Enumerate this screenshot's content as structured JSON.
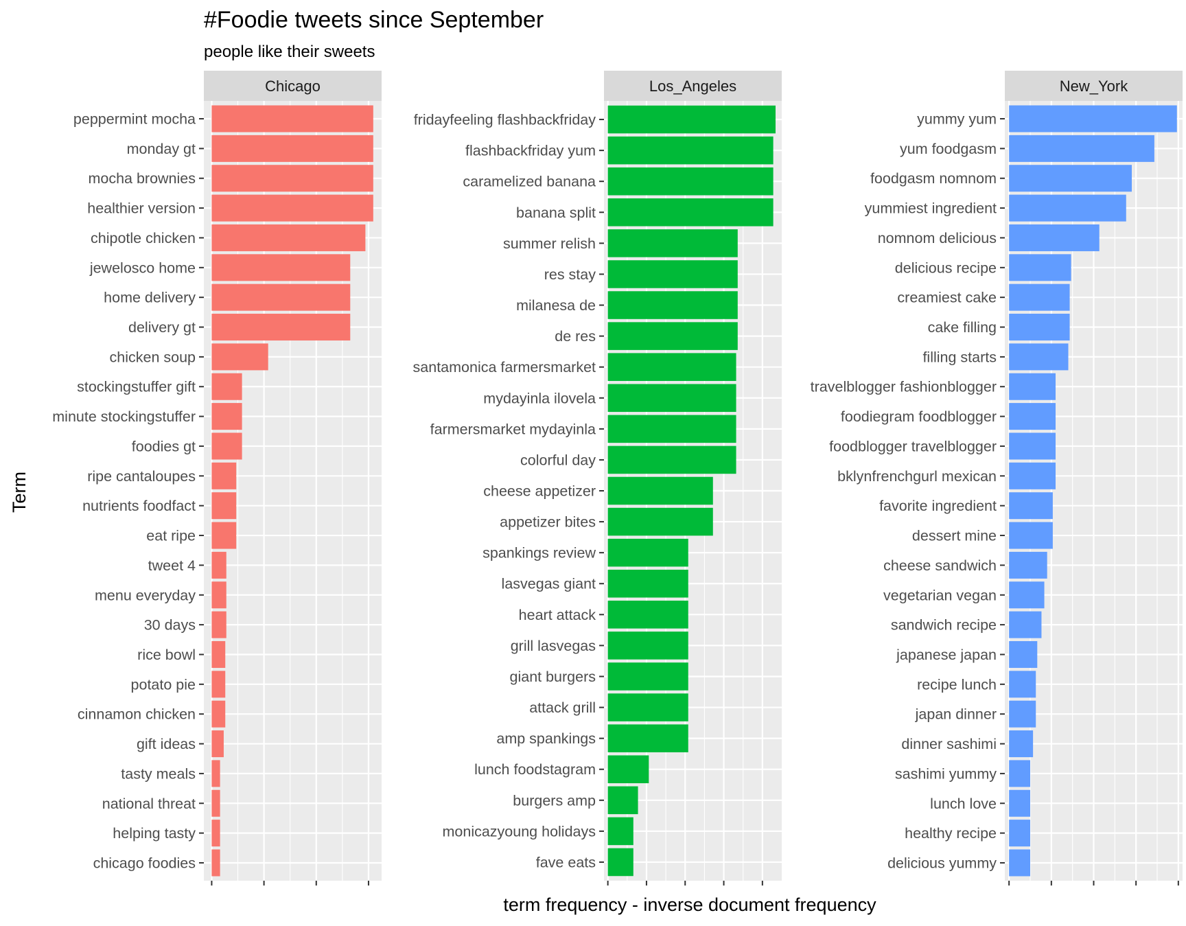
{
  "chart_data": {
    "type": "bar",
    "orientation": "horizontal",
    "faceted": true,
    "title": "#Foodie tweets since September",
    "subtitle": "people like their sweets",
    "xlabel": "term frequency - inverse document frequency",
    "ylabel": "Term",
    "grid": true,
    "legend": "none",
    "x_tick_labels_visible": false,
    "facets": [
      {
        "name": "Chicago",
        "color": "#F8766D",
        "xlim": [
          -0.0015,
          0.0325
        ],
        "x_ticks": [
          0,
          0.01,
          0.02,
          0.03
        ],
        "categories": [
          "peppermint mocha",
          "monday gt",
          "mocha brownies",
          "healthier version",
          "chipotle chicken",
          "jewelosco home",
          "home delivery",
          "delivery gt",
          "chicken soup",
          "stockingstuffer gift",
          "minute stockingstuffer",
          "foodies gt",
          "ripe cantaloupes",
          "nutrients foodfact",
          "eat ripe",
          "tweet 4",
          "menu everyday",
          "30 days",
          "rice bowl",
          "potato pie",
          "cinnamon chicken",
          "gift ideas",
          "tasty meals",
          "national threat",
          "helping tasty",
          "chicago foodies"
        ],
        "values": [
          0.0309,
          0.0309,
          0.0309,
          0.0309,
          0.0294,
          0.0265,
          0.0265,
          0.0265,
          0.0108,
          0.0058,
          0.0058,
          0.0058,
          0.0047,
          0.0047,
          0.0047,
          0.0028,
          0.0028,
          0.0028,
          0.0026,
          0.0026,
          0.0026,
          0.0023,
          0.0016,
          0.0016,
          0.0016,
          0.0016
        ]
      },
      {
        "name": "Los_Angeles",
        "color": "#00BA38",
        "xlim": [
          -0.0005,
          0.0225
        ],
        "x_ticks": [
          0,
          0.005,
          0.01,
          0.015,
          0.02
        ],
        "categories": [
          "fridayfeeling flashbackfriday",
          "flashbackfriday yum",
          "caramelized banana",
          "banana split",
          "summer relish",
          "res stay",
          "milanesa de",
          "de res",
          "santamonica farmersmarket",
          "mydayinla ilovela",
          "farmersmarket mydayinla",
          "colorful day",
          "cheese appetizer",
          "appetizer bites",
          "spankings review",
          "lasvegas giant",
          "heart attack",
          "grill lasvegas",
          "giant burgers",
          "attack grill",
          "amp spankings",
          "lunch foodstagram",
          "burgers amp",
          "monicazyoung holidays",
          "fave eats"
        ],
        "values": [
          0.0217,
          0.0214,
          0.0214,
          0.0214,
          0.0168,
          0.0168,
          0.0168,
          0.0168,
          0.0166,
          0.0166,
          0.0166,
          0.0166,
          0.0136,
          0.0136,
          0.0104,
          0.0104,
          0.0104,
          0.0104,
          0.0104,
          0.0104,
          0.0104,
          0.0053,
          0.0039,
          0.0033,
          0.0033
        ]
      },
      {
        "name": "New_York",
        "color": "#619CFF",
        "xlim": [
          -0.0003,
          0.0123
        ],
        "x_ticks": [
          0,
          0.003,
          0.006,
          0.009,
          0.012
        ],
        "categories": [
          "yummy yum",
          "yum foodgasm",
          "foodgasm nomnom",
          "yummiest ingredient",
          "nomnom delicious",
          "delicious recipe",
          "creamiest cake",
          "cake filling",
          "filling starts",
          "travelblogger fashionblogger",
          "foodiegram foodblogger",
          "foodblogger travelblogger",
          "bklynfrenchgurl mexican",
          "favorite ingredient",
          "dessert mine",
          "cheese sandwich",
          "vegetarian vegan",
          "sandwich recipe",
          "japanese japan",
          "recipe lunch",
          "japan dinner",
          "dinner sashimi",
          "sashimi yummy",
          "lunch love",
          "healthy recipe",
          "delicious yummy"
        ],
        "values": [
          0.0119,
          0.0103,
          0.0087,
          0.0083,
          0.0064,
          0.0044,
          0.0043,
          0.0043,
          0.0042,
          0.0033,
          0.0033,
          0.0033,
          0.0033,
          0.0031,
          0.0031,
          0.0027,
          0.0025,
          0.0023,
          0.002,
          0.0019,
          0.0019,
          0.0017,
          0.0015,
          0.0015,
          0.0015,
          0.0015
        ]
      }
    ]
  }
}
